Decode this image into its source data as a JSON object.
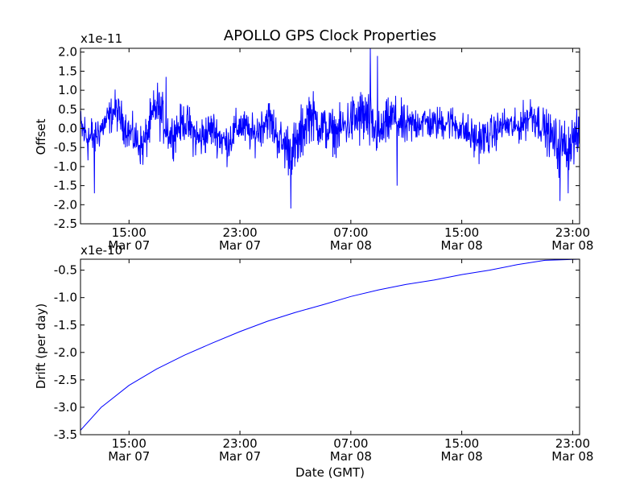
{
  "figure": {
    "title": "APOLLO GPS Clock Properties",
    "xlabel": "Date (GMT)"
  },
  "chart_data": [
    {
      "type": "line",
      "name": "offset-panel",
      "ylabel": "Offset",
      "y_multiplier": "x1e-11",
      "ylim": [
        -2.5,
        2.1
      ],
      "yticks": [
        "-2.5",
        "-2.0",
        "-1.5",
        "-1.0",
        "-0.5",
        "0.0",
        "0.5",
        "1.0",
        "1.5",
        "2.0"
      ],
      "xticks": [
        {
          "time": "15:00",
          "date": "Mar 07"
        },
        {
          "time": "23:00",
          "date": "Mar 07"
        },
        {
          "time": "07:00",
          "date": "Mar 08"
        },
        {
          "time": "15:00",
          "date": "Mar 08"
        },
        {
          "time": "23:00",
          "date": "Mar 08"
        }
      ],
      "x_start": "2011-03-07T11:30",
      "x_end": "2011-03-08T23:30",
      "line_color": "#0000ff",
      "grid": false,
      "envelope": [
        {
          "x": "2011-03-07T11:30",
          "y": 0.0,
          "spread": 0.9
        },
        {
          "x": "2011-03-07T12:15",
          "y": -0.3,
          "spread": 1.2
        },
        {
          "x": "2011-03-07T13:00",
          "y": 0.0,
          "spread": 0.7
        },
        {
          "x": "2011-03-07T14:00",
          "y": 0.5,
          "spread": 0.8
        },
        {
          "x": "2011-03-07T15:00",
          "y": -0.1,
          "spread": 0.8
        },
        {
          "x": "2011-03-07T16:00",
          "y": -0.5,
          "spread": 0.9
        },
        {
          "x": "2011-03-07T17:00",
          "y": 0.6,
          "spread": 1.1
        },
        {
          "x": "2011-03-07T18:00",
          "y": -0.2,
          "spread": 0.9
        },
        {
          "x": "2011-03-07T19:00",
          "y": 0.2,
          "spread": 0.8
        },
        {
          "x": "2011-03-07T20:00",
          "y": -0.3,
          "spread": 1.0
        },
        {
          "x": "2011-03-07T21:00",
          "y": 0.0,
          "spread": 0.8
        },
        {
          "x": "2011-03-07T22:00",
          "y": -0.4,
          "spread": 0.9
        },
        {
          "x": "2011-03-07T23:00",
          "y": 0.1,
          "spread": 0.8
        },
        {
          "x": "2011-03-08T00:00",
          "y": -0.2,
          "spread": 0.8
        },
        {
          "x": "2011-03-08T01:00",
          "y": 0.3,
          "spread": 0.9
        },
        {
          "x": "2011-03-08T02:00",
          "y": -0.4,
          "spread": 1.0
        },
        {
          "x": "2011-03-08T03:00",
          "y": -0.6,
          "spread": 1.3
        },
        {
          "x": "2011-03-08T04:00",
          "y": 0.4,
          "spread": 1.1
        },
        {
          "x": "2011-03-08T05:00",
          "y": 0.0,
          "spread": 1.0
        },
        {
          "x": "2011-03-08T06:00",
          "y": -0.1,
          "spread": 0.9
        },
        {
          "x": "2011-03-08T07:00",
          "y": 0.2,
          "spread": 1.1
        },
        {
          "x": "2011-03-08T08:00",
          "y": 0.3,
          "spread": 1.4
        },
        {
          "x": "2011-03-08T09:00",
          "y": -0.2,
          "spread": 1.0
        },
        {
          "x": "2011-03-08T10:00",
          "y": 0.3,
          "spread": 1.0
        },
        {
          "x": "2011-03-08T11:00",
          "y": 0.0,
          "spread": 0.9
        },
        {
          "x": "2011-03-08T12:00",
          "y": 0.2,
          "spread": 0.8
        },
        {
          "x": "2011-03-08T13:00",
          "y": 0.1,
          "spread": 0.7
        },
        {
          "x": "2011-03-08T14:00",
          "y": 0.2,
          "spread": 0.8
        },
        {
          "x": "2011-03-08T15:00",
          "y": 0.0,
          "spread": 0.7
        },
        {
          "x": "2011-03-08T16:00",
          "y": -0.3,
          "spread": 0.9
        },
        {
          "x": "2011-03-08T17:00",
          "y": -0.2,
          "spread": 0.8
        },
        {
          "x": "2011-03-08T18:00",
          "y": 0.1,
          "spread": 0.7
        },
        {
          "x": "2011-03-08T19:00",
          "y": 0.0,
          "spread": 0.7
        },
        {
          "x": "2011-03-08T20:00",
          "y": 0.4,
          "spread": 0.9
        },
        {
          "x": "2011-03-08T21:00",
          "y": 0.0,
          "spread": 0.8
        },
        {
          "x": "2011-03-08T22:00",
          "y": -0.5,
          "spread": 1.2
        },
        {
          "x": "2011-03-08T23:00",
          "y": -0.3,
          "spread": 1.1
        },
        {
          "x": "2011-03-08T23:30",
          "y": -0.2,
          "spread": 0.9
        }
      ],
      "extremes": [
        {
          "x": "2011-03-07T12:30",
          "y": -1.7
        },
        {
          "x": "2011-03-07T17:40",
          "y": 1.35
        },
        {
          "x": "2011-03-08T02:40",
          "y": -2.1
        },
        {
          "x": "2011-03-08T08:25",
          "y": 2.1
        },
        {
          "x": "2011-03-08T08:55",
          "y": 1.9
        },
        {
          "x": "2011-03-08T10:20",
          "y": -1.5
        },
        {
          "x": "2011-03-08T22:05",
          "y": -1.9
        },
        {
          "x": "2011-03-08T22:40",
          "y": -1.7
        }
      ]
    },
    {
      "type": "line",
      "name": "drift-panel",
      "ylabel": "Drift (per day)",
      "y_multiplier": "x1e-10",
      "ylim": [
        -3.5,
        -0.3
      ],
      "yticks": [
        "-3.5",
        "-3.0",
        "-2.5",
        "-2.0",
        "-1.5",
        "-1.0",
        "-0.5"
      ],
      "xticks": [
        {
          "time": "15:00",
          "date": "Mar 07"
        },
        {
          "time": "23:00",
          "date": "Mar 07"
        },
        {
          "time": "07:00",
          "date": "Mar 08"
        },
        {
          "time": "15:00",
          "date": "Mar 08"
        },
        {
          "time": "23:00",
          "date": "Mar 08"
        }
      ],
      "x_start": "2011-03-07T11:30",
      "x_end": "2011-03-08T23:30",
      "line_color": "#0000ff",
      "grid": false,
      "points": [
        {
          "x": "2011-03-07T11:30",
          "y": -3.42
        },
        {
          "x": "2011-03-07T13:00",
          "y": -3.0
        },
        {
          "x": "2011-03-07T15:00",
          "y": -2.6
        },
        {
          "x": "2011-03-07T17:00",
          "y": -2.3
        },
        {
          "x": "2011-03-07T19:00",
          "y": -2.05
        },
        {
          "x": "2011-03-07T21:00",
          "y": -1.83
        },
        {
          "x": "2011-03-07T23:00",
          "y": -1.62
        },
        {
          "x": "2011-03-08T01:00",
          "y": -1.43
        },
        {
          "x": "2011-03-08T03:00",
          "y": -1.27
        },
        {
          "x": "2011-03-08T05:00",
          "y": -1.13
        },
        {
          "x": "2011-03-08T07:00",
          "y": -0.98
        },
        {
          "x": "2011-03-08T09:00",
          "y": -0.86
        },
        {
          "x": "2011-03-08T11:00",
          "y": -0.76
        },
        {
          "x": "2011-03-08T13:00",
          "y": -0.68
        },
        {
          "x": "2011-03-08T15:00",
          "y": -0.58
        },
        {
          "x": "2011-03-08T17:00",
          "y": -0.5
        },
        {
          "x": "2011-03-08T19:00",
          "y": -0.4
        },
        {
          "x": "2011-03-08T21:00",
          "y": -0.32
        },
        {
          "x": "2011-03-08T23:30",
          "y": -0.3
        }
      ]
    }
  ]
}
